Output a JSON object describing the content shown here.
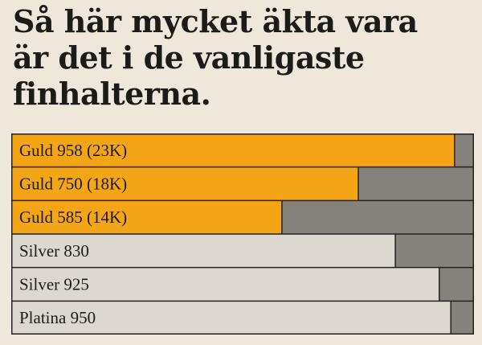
{
  "headline": {
    "line1": "Så här mycket äkta vara",
    "line2": "är det i de vanligaste",
    "line3": "finhalterna."
  },
  "colors": {
    "gold": "#f3a516",
    "silver": "#dcd8d0",
    "remainder": "#85817c",
    "border": "#25221f"
  },
  "chart_data": {
    "type": "bar",
    "orientation": "horizontal",
    "stacked": true,
    "title": "Så här mycket äkta vara är det i de vanligaste finhalterna.",
    "categories": [
      "Guld 958 (23K)",
      "Guld 750 (18K)",
      "Guld 585 (14K)",
      "Silver 830",
      "Silver 925",
      "Platina 950"
    ],
    "values": [
      0.958,
      0.75,
      0.585,
      0.83,
      0.925,
      0.95
    ],
    "fill_colors": [
      "#f3a516",
      "#f3a516",
      "#f3a516",
      "#dcd8d0",
      "#dcd8d0",
      "#dcd8d0"
    ],
    "xlim": [
      0,
      1
    ],
    "grid": false,
    "legend": "none"
  }
}
